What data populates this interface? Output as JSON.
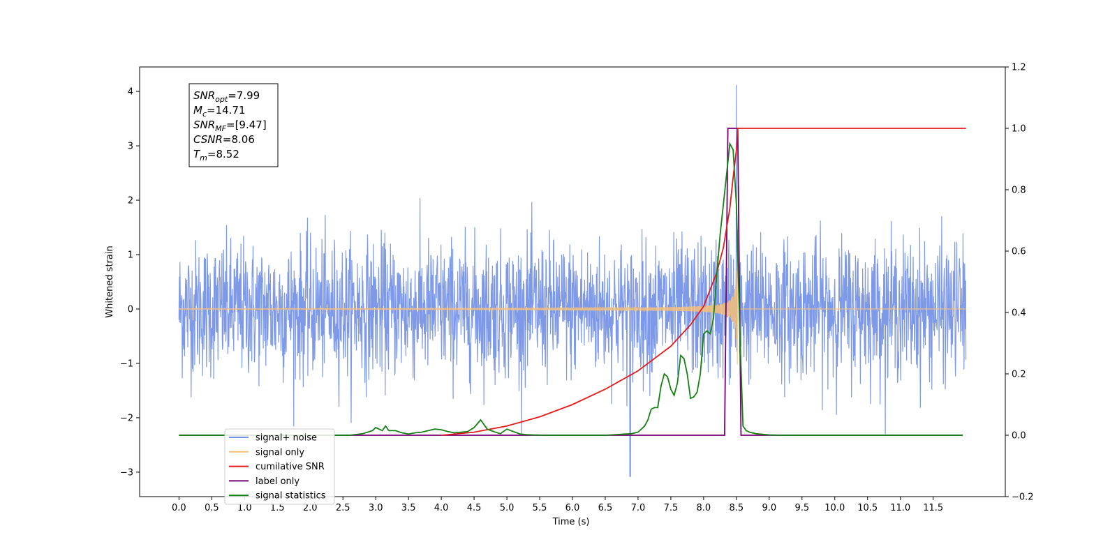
{
  "chart_data": {
    "type": "line",
    "title": "",
    "xlabel": "Time (s)",
    "ylabel": "Whitened strain",
    "y2label": "",
    "xlim": [
      -0.6,
      12.6
    ],
    "ylim": [
      -3.45,
      4.45
    ],
    "y2lim": [
      -0.2,
      1.2
    ],
    "x_ticks": [
      "0.0",
      "0.5",
      "1.0",
      "1.5",
      "2.0",
      "2.5",
      "3.0",
      "3.5",
      "4.0",
      "4.5",
      "5.0",
      "5.5",
      "6.0",
      "6.5",
      "7.0",
      "7.5",
      "8.0",
      "8.5",
      "9.0",
      "9.5",
      "10.0",
      "10.5",
      "11.0",
      "11.5"
    ],
    "x_tick_values": [
      0,
      0.5,
      1,
      1.5,
      2,
      2.5,
      3,
      3.5,
      4,
      4.5,
      5,
      5.5,
      6,
      6.5,
      7,
      7.5,
      8,
      8.5,
      9,
      9.5,
      10,
      10.5,
      11,
      11.5
    ],
    "y_ticks": [
      "−3",
      "−2",
      "−1",
      "0",
      "1",
      "2",
      "3",
      "4"
    ],
    "y_tick_values": [
      -3,
      -2,
      -1,
      0,
      1,
      2,
      3,
      4
    ],
    "y2_ticks": [
      "−0.2",
      "0.0",
      "0.2",
      "0.4",
      "0.6",
      "0.8",
      "1.0",
      "1.2"
    ],
    "y2_tick_values": [
      -0.2,
      0,
      0.2,
      0.4,
      0.6,
      0.8,
      1.0,
      1.2
    ],
    "grid": false,
    "legend_position": "lower-left",
    "series": [
      {
        "name": "signal+ noise",
        "axis": "left",
        "color": "#7794e6",
        "noise_extent": [
          -2.1,
          2.7
        ],
        "max_point": [
          8.5,
          4.12
        ],
        "min_point": [
          6.88,
          -3.08
        ]
      },
      {
        "name": "signal only",
        "axis": "left",
        "color": "#f7c07a",
        "chirp_start": 0.0,
        "chirp_merger": 8.52,
        "chirp_end": 12.0,
        "peak_amplitude": 1.05
      },
      {
        "name": "cumilative SNR",
        "axis": "right",
        "color": "#e61a1a",
        "x": [
          4.0,
          4.5,
          5.0,
          5.5,
          6.0,
          6.5,
          7.0,
          7.5,
          7.8,
          8.0,
          8.2,
          8.3,
          8.4,
          8.45,
          8.5,
          8.52,
          12.0
        ],
        "values": [
          0.0,
          0.01,
          0.03,
          0.06,
          0.1,
          0.15,
          0.21,
          0.29,
          0.36,
          0.42,
          0.53,
          0.61,
          0.74,
          0.84,
          0.93,
          1.0,
          1.0
        ]
      },
      {
        "name": "label only",
        "axis": "right",
        "color": "#730073",
        "x": [
          0.0,
          8.32,
          8.37,
          8.52,
          8.57,
          11.95
        ],
        "values": [
          0.0,
          0.0,
          1.0,
          1.0,
          0.0,
          0.0
        ]
      },
      {
        "name": "signal statistics",
        "axis": "right",
        "color": "#158015",
        "x": [
          0.0,
          2.6,
          2.8,
          2.95,
          3.0,
          3.1,
          3.15,
          3.2,
          3.3,
          3.4,
          3.5,
          3.6,
          3.7,
          3.8,
          3.9,
          4.0,
          4.1,
          4.2,
          4.3,
          4.4,
          4.5,
          4.6,
          4.7,
          4.8,
          4.9,
          5.0,
          5.1,
          5.2,
          5.3,
          5.4,
          5.6,
          6.0,
          6.5,
          6.9,
          7.0,
          7.1,
          7.15,
          7.2,
          7.25,
          7.3,
          7.35,
          7.4,
          7.45,
          7.5,
          7.55,
          7.6,
          7.65,
          7.7,
          7.75,
          7.8,
          7.85,
          7.9,
          7.95,
          8.0,
          8.05,
          8.1,
          8.15,
          8.2,
          8.25,
          8.3,
          8.35,
          8.4,
          8.45,
          8.5,
          8.55,
          8.6,
          8.65,
          8.7,
          8.8,
          9.0,
          9.2,
          11.95
        ],
        "values": [
          0.0,
          0.0,
          0.005,
          0.015,
          0.025,
          0.015,
          0.03,
          0.015,
          0.015,
          0.008,
          0.004,
          0.008,
          0.01,
          0.015,
          0.02,
          0.018,
          0.012,
          0.008,
          0.01,
          0.012,
          0.025,
          0.05,
          0.02,
          0.012,
          0.005,
          0.02,
          0.012,
          0.004,
          0.002,
          0.001,
          0.0,
          0.0,
          0.0,
          0.005,
          0.01,
          0.03,
          0.05,
          0.085,
          0.09,
          0.09,
          0.16,
          0.2,
          0.19,
          0.15,
          0.13,
          0.17,
          0.26,
          0.25,
          0.2,
          0.12,
          0.125,
          0.14,
          0.2,
          0.33,
          0.34,
          0.33,
          0.38,
          0.52,
          0.65,
          0.75,
          0.85,
          0.95,
          0.93,
          0.75,
          0.35,
          0.03,
          0.015,
          0.01,
          0.005,
          0.001,
          0.0,
          0.0
        ]
      }
    ],
    "annotations": {
      "info_box": [
        {
          "base": "SNR",
          "sub": "opt",
          "value": "=7.99"
        },
        {
          "base": "M",
          "sub": "c",
          "value": "=14.71"
        },
        {
          "base": "SNR",
          "sub": "MF",
          "value": "=[9.47]"
        },
        {
          "base": "CSNR",
          "sub": "",
          "value": "=8.06"
        },
        {
          "base": "T",
          "sub": "m",
          "value": "=8.52"
        }
      ]
    }
  }
}
